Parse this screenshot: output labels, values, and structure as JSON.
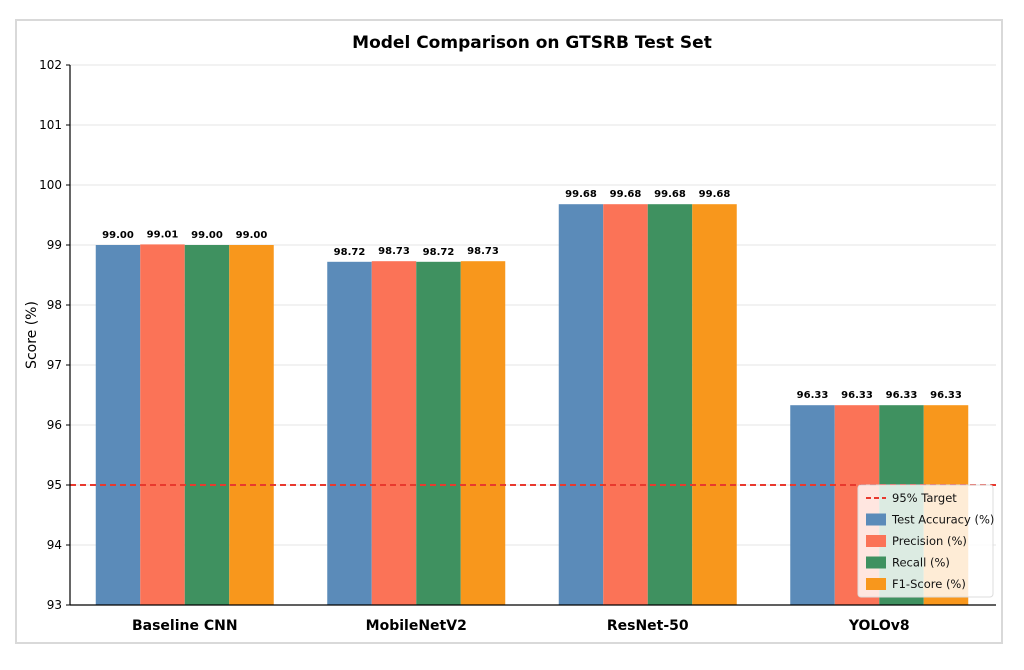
{
  "chart_data": {
    "type": "bar",
    "title": "Model Comparison on GTSRB Test Set",
    "xlabel": "",
    "ylabel": "Score (%)",
    "ylim": [
      93,
      102
    ],
    "yticks": [
      93,
      94,
      95,
      96,
      97,
      98,
      99,
      100,
      101,
      102
    ],
    "categories": [
      "Baseline CNN",
      "MobileNetV2",
      "ResNet-50",
      "YOLOv8"
    ],
    "series": [
      {
        "name": "Test Accuracy (%)",
        "color": "#5b8bb9",
        "values": [
          99.0,
          98.72,
          99.68,
          96.33
        ]
      },
      {
        "name": "Precision (%)",
        "color": "#fb7357",
        "values": [
          99.01,
          98.73,
          99.68,
          96.33
        ]
      },
      {
        "name": "Recall (%)",
        "color": "#3f9160",
        "values": [
          99.0,
          98.72,
          99.68,
          96.33
        ]
      },
      {
        "name": "F1-Score (%)",
        "color": "#f8971c",
        "values": [
          99.0,
          98.73,
          99.68,
          96.33
        ]
      }
    ],
    "reference_line": {
      "name": "95% Target",
      "value": 95,
      "color": "#e8392e",
      "style": "dashed"
    },
    "grid": "horizontal",
    "legend_position": "lower-right",
    "data_labels": true
  }
}
